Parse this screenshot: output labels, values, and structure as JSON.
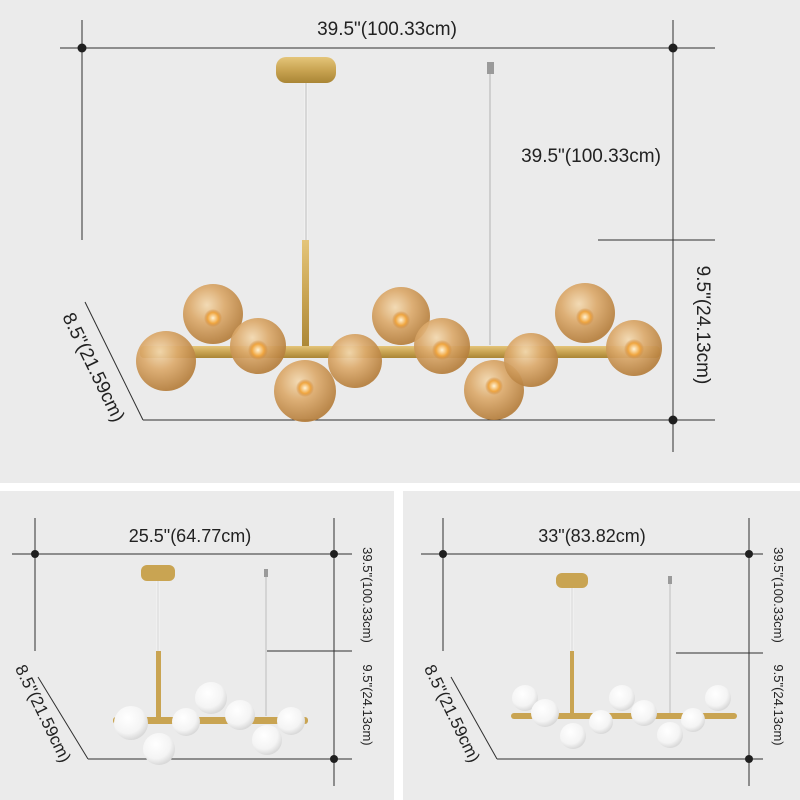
{
  "panels": {
    "amber": {
      "width_label": "39.5\"(100.33cm)",
      "height_label": "39.5\"(100.33cm)",
      "drop_label": "9.5\"(24.13cm)",
      "depth_label": "8.5\"(21.59cm)",
      "globe_color": "#d9a96a"
    },
    "white_small": {
      "width_label": "25.5\"(64.77cm)",
      "height_label": "39.5\"(100.33cm)",
      "drop_label": "9.5\"(24.13cm)",
      "depth_label": "8.5\"(21.59cm)",
      "globe_color": "#f8f8f8"
    },
    "white_medium": {
      "width_label": "33\"(83.82cm)",
      "height_label": "39.5\"(100.33cm)",
      "drop_label": "9.5\"(24.13cm)",
      "depth_label": "8.5\"(21.59cm)",
      "globe_color": "#f8f8f8"
    }
  },
  "colors": {
    "background": "#ebebeb",
    "brass": "#c9a452",
    "amber_glass": "#d9a96a",
    "white_glass": "#f8f8f8",
    "dimension_line": "#2f2f2f"
  }
}
